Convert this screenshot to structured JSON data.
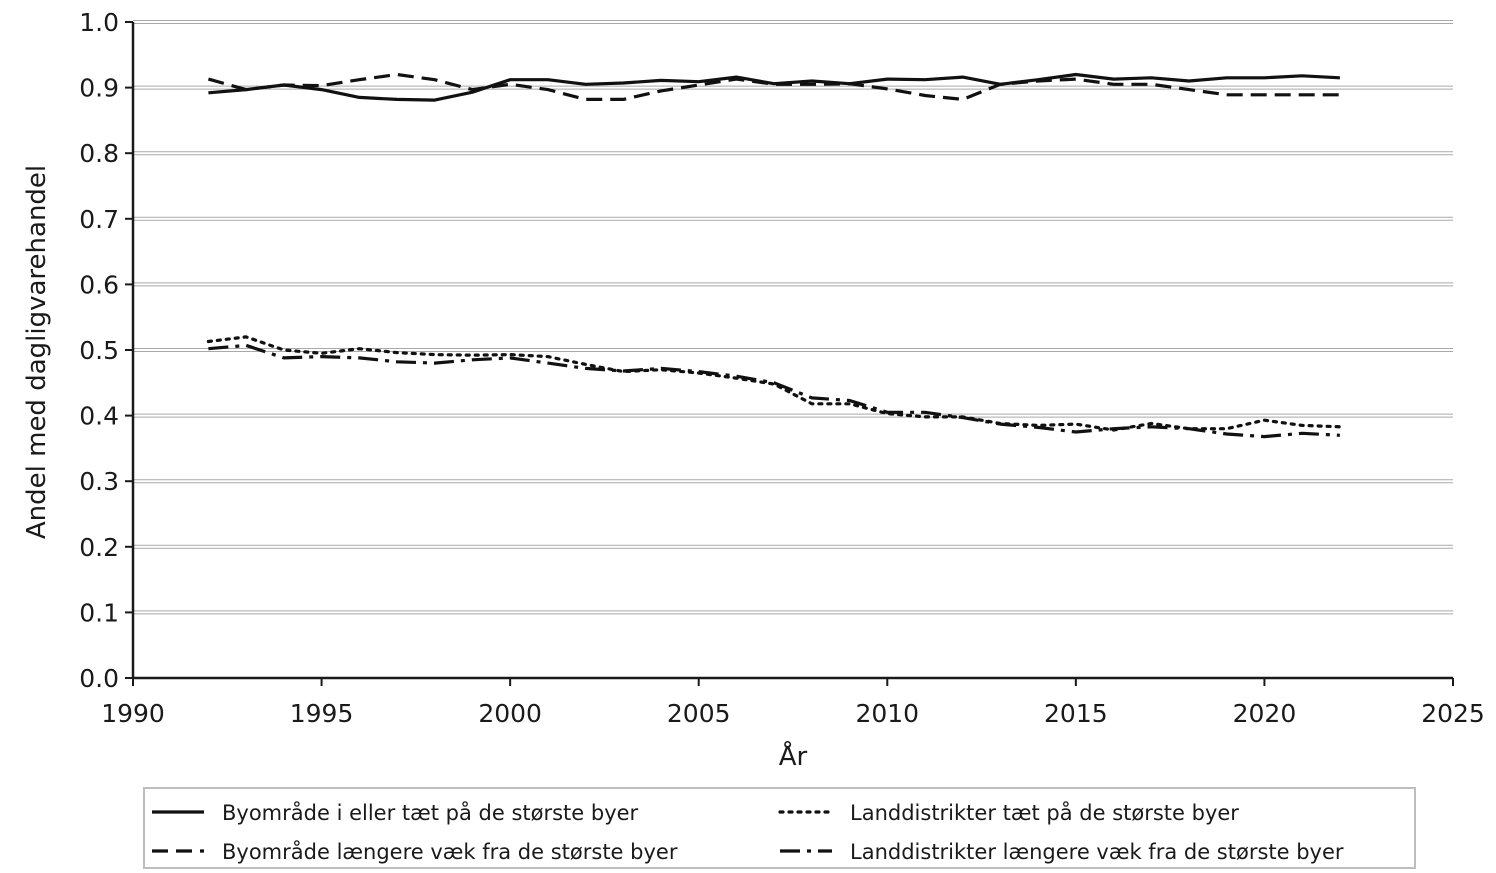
{
  "chart_data": {
    "type": "line",
    "title": "",
    "xlabel": "År",
    "ylabel": "Andel med dagligvarehandel",
    "xlim": [
      1990,
      2025
    ],
    "ylim": [
      0.0,
      1.0
    ],
    "xticks": [
      "1990",
      "1995",
      "2000",
      "2005",
      "2010",
      "2015",
      "2020",
      "2025"
    ],
    "yticks": [
      "0.0",
      "0.1",
      "0.2",
      "0.3",
      "0.4",
      "0.5",
      "0.6",
      "0.7",
      "0.8",
      "0.9",
      "1.0"
    ],
    "grid": "horizontal",
    "legend_position": "bottom",
    "x": [
      1992,
      1993,
      1994,
      1995,
      1996,
      1997,
      1998,
      1999,
      2000,
      2001,
      2002,
      2003,
      2004,
      2005,
      2006,
      2007,
      2008,
      2009,
      2010,
      2011,
      2012,
      2013,
      2014,
      2015,
      2016,
      2017,
      2018,
      2019,
      2020,
      2021,
      2022
    ],
    "series": [
      {
        "name": "Byområde i eller tæt på de største byer",
        "style": "solid",
        "values": [
          0.892,
          0.897,
          0.904,
          0.897,
          0.885,
          0.882,
          0.881,
          0.893,
          0.912,
          0.912,
          0.905,
          0.907,
          0.911,
          0.909,
          0.916,
          0.906,
          0.91,
          0.906,
          0.913,
          0.912,
          0.916,
          0.905,
          0.912,
          0.92,
          0.913,
          0.915,
          0.91,
          0.915,
          0.915,
          0.918,
          0.915
        ]
      },
      {
        "name": "Byområde længere væk fra de største byer",
        "style": "dashed",
        "values": [
          0.913,
          0.897,
          0.904,
          0.903,
          0.912,
          0.92,
          0.912,
          0.897,
          0.905,
          0.897,
          0.882,
          0.882,
          0.895,
          0.904,
          0.913,
          0.905,
          0.905,
          0.906,
          0.898,
          0.888,
          0.882,
          0.905,
          0.91,
          0.913,
          0.905,
          0.905,
          0.897,
          0.889,
          0.889,
          0.889,
          0.889
        ]
      },
      {
        "name": "Landdistrikter tæt på de største byer",
        "style": "dotted",
        "values": [
          0.513,
          0.52,
          0.5,
          0.495,
          0.502,
          0.496,
          0.493,
          0.492,
          0.493,
          0.49,
          0.478,
          0.467,
          0.47,
          0.465,
          0.457,
          0.448,
          0.418,
          0.418,
          0.403,
          0.398,
          0.398,
          0.388,
          0.385,
          0.387,
          0.378,
          0.388,
          0.38,
          0.38,
          0.393,
          0.385,
          0.383
        ]
      },
      {
        "name": "Landdistrikter længere væk fra de største byer",
        "style": "dashdot",
        "values": [
          0.502,
          0.507,
          0.488,
          0.49,
          0.488,
          0.482,
          0.48,
          0.485,
          0.488,
          0.48,
          0.472,
          0.468,
          0.472,
          0.467,
          0.46,
          0.45,
          0.427,
          0.423,
          0.405,
          0.405,
          0.397,
          0.387,
          0.382,
          0.375,
          0.38,
          0.383,
          0.38,
          0.372,
          0.368,
          0.373,
          0.37
        ]
      }
    ]
  }
}
